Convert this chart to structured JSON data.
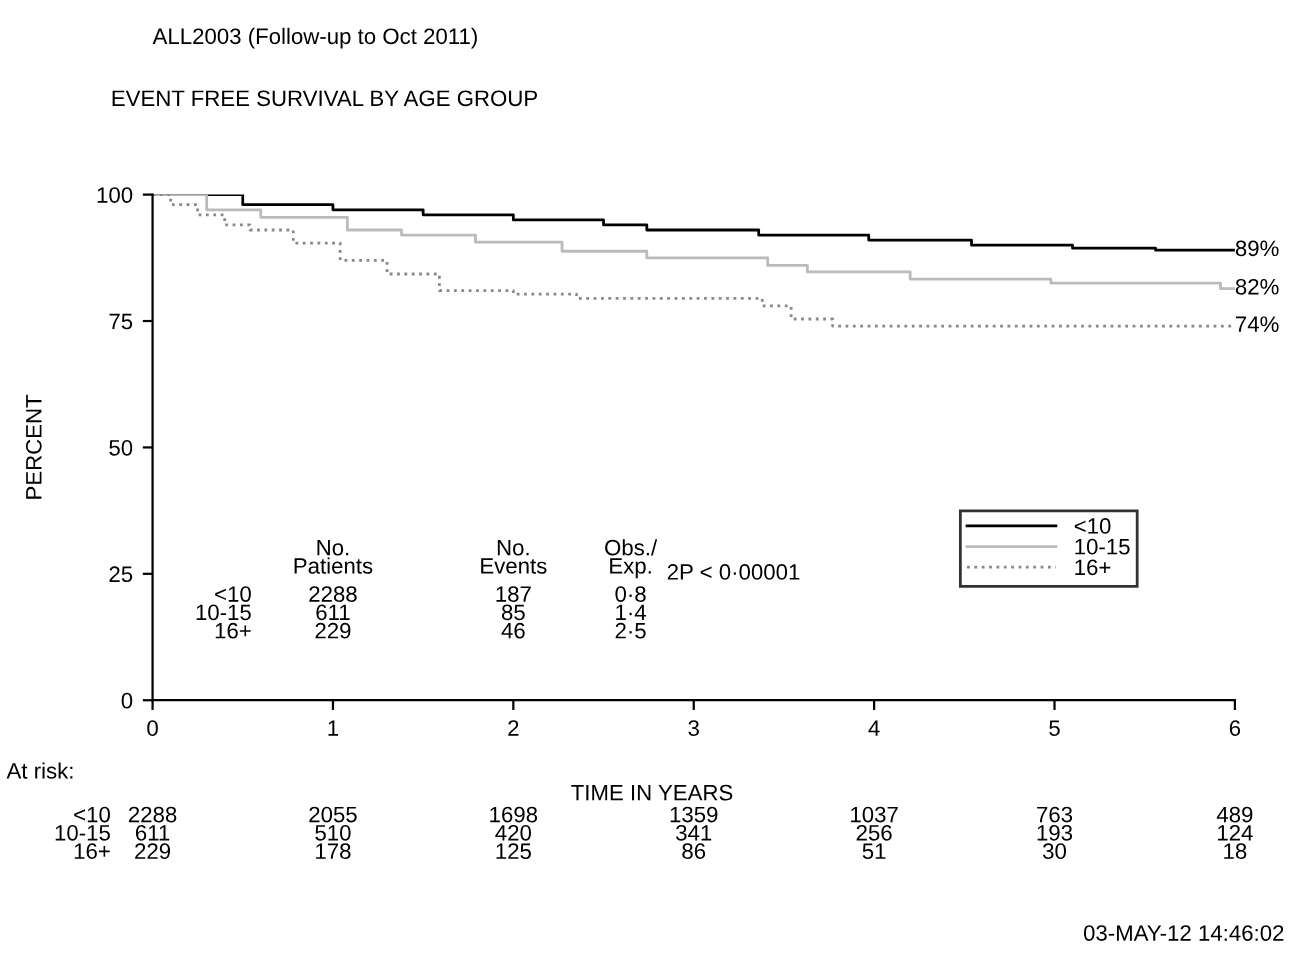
{
  "chart_data": {
    "type": "step",
    "title": "ALL2003 (Follow-up to Oct 2011)",
    "subtitle": "EVENT FREE SURVIVAL BY AGE GROUP",
    "xlabel": "TIME IN YEARS",
    "ylabel": "PERCENT",
    "xlim": [
      0,
      6
    ],
    "xticks": [
      0,
      1,
      2,
      3,
      4,
      5,
      6
    ],
    "ylim": [
      0,
      100
    ],
    "yticks": [
      0,
      25,
      50,
      75,
      100
    ],
    "grid": false,
    "legend": "right",
    "series": [
      {
        "name": "<10",
        "color": "#000000",
        "line_style": "solid",
        "x": [
          0,
          0.5,
          1,
          1.5,
          2,
          2.5,
          2.74,
          3.36,
          3.97,
          4.54,
          5.1,
          5.56,
          6
        ],
        "values": [
          100,
          98,
          97,
          96,
          95,
          94,
          93,
          92,
          91,
          90,
          89.4,
          89,
          89
        ]
      },
      {
        "name": "10-15",
        "color": "#bbbbbb",
        "line_style": "solid",
        "x": [
          0,
          0.3,
          0.6,
          1.08,
          1.38,
          1.79,
          2.27,
          2.74,
          3.41,
          3.63,
          4.2,
          4.98,
          5.92,
          6
        ],
        "values": [
          100,
          97,
          95.5,
          93,
          92,
          90.6,
          88.8,
          87.5,
          86,
          84.7,
          83.3,
          82.5,
          81.4,
          81.4
        ]
      },
      {
        "name": "16+",
        "color": "#888888",
        "line_style": "dotted",
        "x": [
          0,
          0.1,
          0.25,
          0.4,
          0.54,
          0.78,
          1.04,
          1.3,
          1.59,
          2.0,
          2.35,
          3.38,
          3.54,
          3.77,
          6
        ],
        "values": [
          100,
          98,
          96,
          94,
          93,
          90.4,
          87,
          84.3,
          81,
          80.3,
          79.5,
          78,
          75.4,
          74,
          74
        ]
      }
    ],
    "annotations": [
      "89%",
      "82%",
      "74%",
      "No.\nPatients",
      "No.\nEvents",
      "Obs./\nExp.",
      "<10\n10-15\n16+",
      "2288\n611\n229",
      "187\n85\n46",
      "0·8\n1·4\n2·5",
      "2P < 0·00001",
      "At risk:",
      "<10\n10-15\n16+",
      "2288\n611\n229",
      "2055\n510\n178",
      "1698\n420\n125",
      "1359\n341\n86",
      "1037\n256\n51",
      "763\n193\n30",
      "489\n124\n18",
      "03-MAY-12 14:46:02"
    ]
  }
}
